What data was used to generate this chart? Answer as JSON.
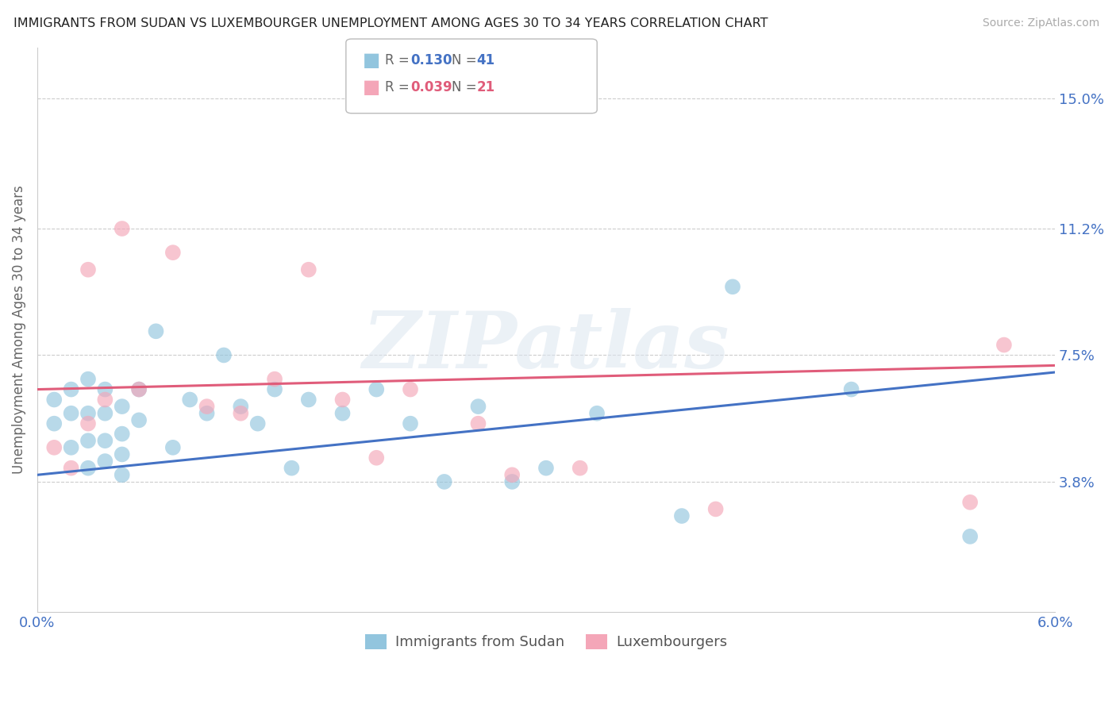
{
  "title": "IMMIGRANTS FROM SUDAN VS LUXEMBOURGER UNEMPLOYMENT AMONG AGES 30 TO 34 YEARS CORRELATION CHART",
  "source": "Source: ZipAtlas.com",
  "ylabel": "Unemployment Among Ages 30 to 34 years",
  "xlim": [
    0.0,
    0.06
  ],
  "ylim": [
    0.0,
    0.165
  ],
  "yticks": [
    0.038,
    0.075,
    0.112,
    0.15
  ],
  "ytick_labels": [
    "3.8%",
    "7.5%",
    "11.2%",
    "15.0%"
  ],
  "color_blue": "#92c5de",
  "color_pink": "#f4a6b8",
  "color_blue_line": "#4472c4",
  "color_pink_line": "#e05c7a",
  "color_text": "#4472c4",
  "watermark": "ZIPatlas",
  "blue_scatter_x": [
    0.001,
    0.001,
    0.002,
    0.002,
    0.002,
    0.003,
    0.003,
    0.003,
    0.003,
    0.004,
    0.004,
    0.004,
    0.004,
    0.005,
    0.005,
    0.005,
    0.005,
    0.006,
    0.006,
    0.007,
    0.008,
    0.009,
    0.01,
    0.011,
    0.012,
    0.013,
    0.014,
    0.015,
    0.016,
    0.018,
    0.02,
    0.022,
    0.024,
    0.026,
    0.028,
    0.03,
    0.033,
    0.038,
    0.041,
    0.048,
    0.055
  ],
  "blue_scatter_y": [
    0.055,
    0.062,
    0.048,
    0.058,
    0.065,
    0.042,
    0.05,
    0.058,
    0.068,
    0.044,
    0.05,
    0.058,
    0.065,
    0.04,
    0.046,
    0.052,
    0.06,
    0.056,
    0.065,
    0.082,
    0.048,
    0.062,
    0.058,
    0.075,
    0.06,
    0.055,
    0.065,
    0.042,
    0.062,
    0.058,
    0.065,
    0.055,
    0.038,
    0.06,
    0.038,
    0.042,
    0.058,
    0.028,
    0.095,
    0.065,
    0.022
  ],
  "pink_scatter_x": [
    0.001,
    0.002,
    0.003,
    0.003,
    0.004,
    0.005,
    0.006,
    0.008,
    0.01,
    0.012,
    0.014,
    0.016,
    0.018,
    0.02,
    0.022,
    0.026,
    0.028,
    0.032,
    0.04,
    0.055,
    0.057
  ],
  "pink_scatter_y": [
    0.048,
    0.042,
    0.055,
    0.1,
    0.062,
    0.112,
    0.065,
    0.105,
    0.06,
    0.058,
    0.068,
    0.1,
    0.062,
    0.045,
    0.065,
    0.055,
    0.04,
    0.042,
    0.03,
    0.032,
    0.078
  ],
  "blue_line_x": [
    0.0,
    0.06
  ],
  "blue_line_y": [
    0.04,
    0.07
  ],
  "pink_line_x": [
    0.0,
    0.06
  ],
  "pink_line_y": [
    0.065,
    0.072
  ]
}
